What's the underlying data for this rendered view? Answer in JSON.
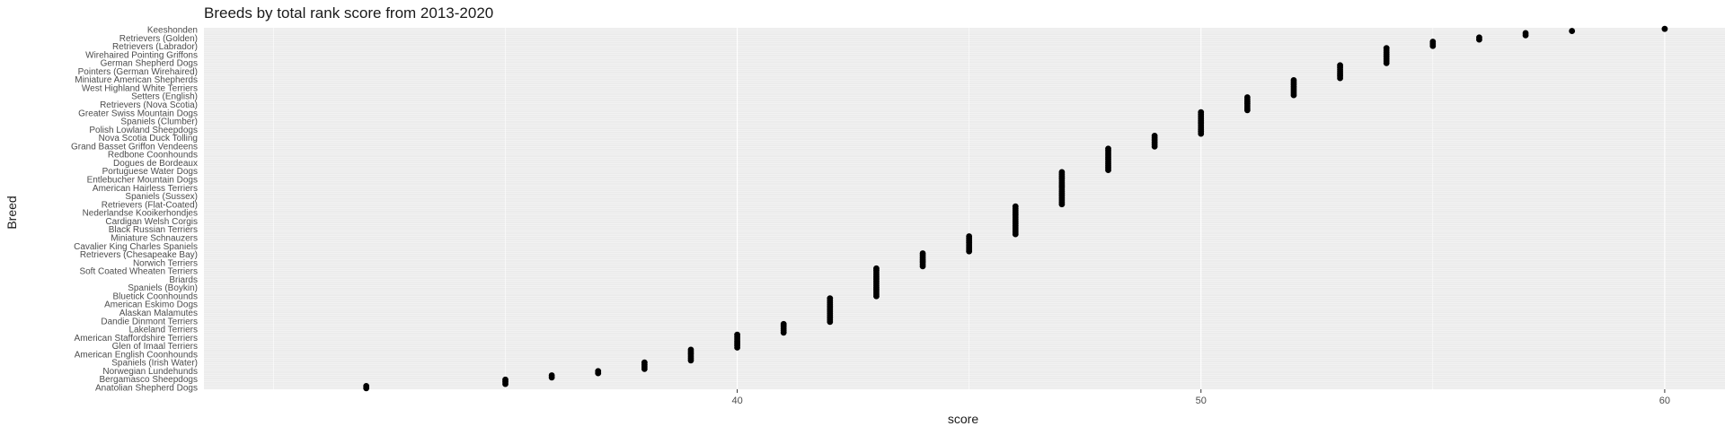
{
  "chart_data": {
    "type": "scatter",
    "title": "Breeds by total rank score from 2013-2020",
    "xlabel": "score",
    "ylabel": "Breed",
    "xlim": [
      28.5,
      61.3
    ],
    "xticks": [
      40,
      50,
      60
    ],
    "grid": true,
    "legend": "none",
    "background_color": "#ebebeb",
    "point_color": "#000000",
    "y_tick_labels": [
      "Anatolian Shepherd Dogs",
      "Bergamasco Sheepdogs",
      "Norwegian Lundehunds",
      "Spaniels (Irish Water)",
      "American English Coonhounds",
      "Glen of Imaal Terriers",
      "American Staffordshire Terriers",
      "Lakeland Terriers",
      "Dandie Dinmont Terriers",
      "Alaskan Malamutes",
      "American Eskimo Dogs",
      "Bluetick Coonhounds",
      "Spaniels (Boykin)",
      "Briards",
      "Soft Coated Wheaten Terriers",
      "Norwich Terriers",
      "Retrievers (Chesapeake Bay)",
      "Cavalier King Charles Spaniels",
      "Miniature Schnauzers",
      "Black Russian Terriers",
      "Cardigan Welsh Corgis",
      "Nederlandse Kooikerhondjes",
      "Retrievers (Flat-Coated)",
      "Spaniels (Sussex)",
      "American Hairless Terriers",
      "Entlebucher Mountain Dogs",
      "Portuguese Water Dogs",
      "Dogues de Bordeaux",
      "Redbone Coonhounds",
      "Grand Basset Griffon Vendeens",
      "Nova Scotia Duck Tolling",
      "Polish Lowland Sheepdogs",
      "Spaniels (Clumber)",
      "Greater Swiss Mountain Dogs",
      "Retrievers (Nova Scotia)",
      "Setters (English)",
      "West Highland White Terriers",
      "Miniature American Shepherds",
      "Pointers (German Wirehaired)",
      "German Shepherd Dogs",
      "Wirehaired Pointing Griffons",
      "Retrievers (Labrador)",
      "Retrievers (Golden)",
      "Keeshonden"
    ],
    "points": [
      {
        "x": 32,
        "n": 2
      },
      {
        "x": 35,
        "n": 3
      },
      {
        "x": 36,
        "n": 2
      },
      {
        "x": 37,
        "n": 2
      },
      {
        "x": 38,
        "n": 4
      },
      {
        "x": 39,
        "n": 6
      },
      {
        "x": 40,
        "n": 7
      },
      {
        "x": 41,
        "n": 5
      },
      {
        "x": 42,
        "n": 12
      },
      {
        "x": 43,
        "n": 14
      },
      {
        "x": 44,
        "n": 7
      },
      {
        "x": 45,
        "n": 8
      },
      {
        "x": 46,
        "n": 14
      },
      {
        "x": 47,
        "n": 16
      },
      {
        "x": 48,
        "n": 11
      },
      {
        "x": 49,
        "n": 6
      },
      {
        "x": 50,
        "n": 11
      },
      {
        "x": 51,
        "n": 7
      },
      {
        "x": 52,
        "n": 8
      },
      {
        "x": 53,
        "n": 7
      },
      {
        "x": 54,
        "n": 8
      },
      {
        "x": 55,
        "n": 3
      },
      {
        "x": 56,
        "n": 2
      },
      {
        "x": 57,
        "n": 2
      },
      {
        "x": 58,
        "n": 1
      },
      {
        "x": 60,
        "n": 1
      }
    ]
  }
}
